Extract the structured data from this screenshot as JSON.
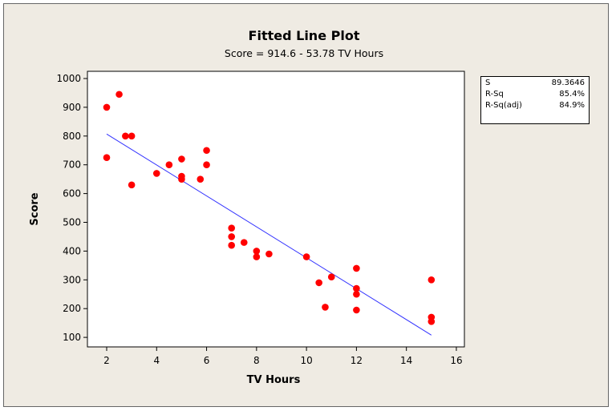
{
  "chart_data": {
    "type": "scatter",
    "title": "Fitted Line Plot",
    "subtitle": "Score =  914.6 - 53.78 TV Hours",
    "xlabel": "TV Hours",
    "ylabel": "Score",
    "xlim": [
      1,
      16.5
    ],
    "ylim": [
      50,
      1030
    ],
    "xticks": [
      2,
      4,
      6,
      8,
      10,
      12,
      14,
      16
    ],
    "yticks": [
      100,
      200,
      300,
      400,
      500,
      600,
      700,
      800,
      900,
      1000
    ],
    "grid": false,
    "points": [
      [
        2,
        900
      ],
      [
        2,
        725
      ],
      [
        2.5,
        945
      ],
      [
        2.75,
        800
      ],
      [
        3,
        800
      ],
      [
        3,
        630
      ],
      [
        4,
        670
      ],
      [
        4.5,
        700
      ],
      [
        5,
        720
      ],
      [
        5,
        660
      ],
      [
        5,
        650
      ],
      [
        5.75,
        650
      ],
      [
        6,
        750
      ],
      [
        6,
        700
      ],
      [
        7,
        480
      ],
      [
        7,
        450
      ],
      [
        7,
        420
      ],
      [
        7.5,
        430
      ],
      [
        8,
        400
      ],
      [
        8,
        380
      ],
      [
        8.5,
        390
      ],
      [
        10,
        380
      ],
      [
        10.5,
        290
      ],
      [
        10.75,
        205
      ],
      [
        11,
        310
      ],
      [
        12,
        340
      ],
      [
        12,
        270
      ],
      [
        12,
        250
      ],
      [
        12,
        195
      ],
      [
        15,
        300
      ],
      [
        15,
        170
      ],
      [
        15,
        155
      ]
    ],
    "fit": {
      "intercept": 914.6,
      "slope": -53.78,
      "x_range": [
        2,
        15
      ]
    },
    "point_color": "#ff0000",
    "line_color": "#3333ff",
    "stats": [
      {
        "label": "S",
        "value": "89.3646"
      },
      {
        "label": "R-Sq",
        "value": "85.4%"
      },
      {
        "label": "R-Sq(adj)",
        "value": "84.9%"
      }
    ]
  }
}
